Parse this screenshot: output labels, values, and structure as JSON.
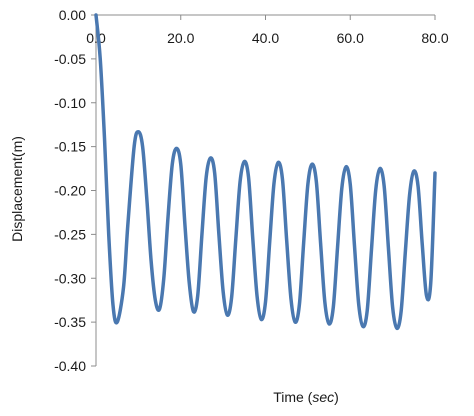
{
  "chart_data": {
    "type": "line",
    "xlabel": "Time",
    "xlabel_unit": "sec",
    "ylabel": "Displacement(m)",
    "xlim": [
      0,
      80
    ],
    "ylim": [
      -0.4,
      0.0
    ],
    "x_ticks": [
      {
        "value": 0,
        "label": "0.0"
      },
      {
        "value": 20,
        "label": "20.0"
      },
      {
        "value": 40,
        "label": "40.0"
      },
      {
        "value": 60,
        "label": "60.0"
      },
      {
        "value": 80,
        "label": "80.0"
      }
    ],
    "y_ticks": [
      {
        "value": 0.0,
        "label": "0.00"
      },
      {
        "value": -0.05,
        "label": "-0.05"
      },
      {
        "value": -0.1,
        "label": "-0.10"
      },
      {
        "value": -0.15,
        "label": "-0.15"
      },
      {
        "value": -0.2,
        "label": "-0.20"
      },
      {
        "value": -0.25,
        "label": "-0.25"
      },
      {
        "value": -0.3,
        "label": "-0.30"
      },
      {
        "value": -0.35,
        "label": "-0.35"
      },
      {
        "value": -0.4,
        "label": "-0.40"
      }
    ],
    "grid": false,
    "legend": "none",
    "line_color": "#4a78b0",
    "series": [
      {
        "x": [
          0,
          1,
          2,
          3,
          4,
          5,
          6.5,
          7.5,
          9,
          10,
          11,
          12,
          13,
          14,
          15,
          16,
          17,
          18,
          19,
          20,
          21,
          22,
          23,
          24,
          25,
          26,
          27,
          28,
          29,
          30,
          31,
          32,
          33,
          34,
          35,
          36,
          37,
          38,
          39,
          40,
          41,
          42,
          43,
          44,
          45,
          46,
          47,
          48,
          49,
          50,
          51,
          52,
          53,
          54,
          55,
          56,
          57,
          58,
          59,
          60,
          61,
          62,
          63,
          64,
          65,
          66,
          67,
          68,
          69,
          70,
          71,
          72,
          73,
          74,
          75,
          76,
          77,
          78,
          79,
          80
        ],
        "y": [
          0.0,
          -0.05,
          -0.14,
          -0.25,
          -0.33,
          -0.35,
          -0.31,
          -0.24,
          -0.15,
          -0.133,
          -0.15,
          -0.21,
          -0.28,
          -0.325,
          -0.335,
          -0.3,
          -0.23,
          -0.17,
          -0.152,
          -0.17,
          -0.24,
          -0.305,
          -0.338,
          -0.32,
          -0.25,
          -0.185,
          -0.163,
          -0.18,
          -0.25,
          -0.315,
          -0.342,
          -0.322,
          -0.255,
          -0.19,
          -0.167,
          -0.185,
          -0.255,
          -0.32,
          -0.347,
          -0.327,
          -0.258,
          -0.192,
          -0.168,
          -0.187,
          -0.257,
          -0.323,
          -0.35,
          -0.33,
          -0.26,
          -0.193,
          -0.17,
          -0.19,
          -0.26,
          -0.327,
          -0.352,
          -0.333,
          -0.265,
          -0.198,
          -0.173,
          -0.193,
          -0.263,
          -0.33,
          -0.355,
          -0.337,
          -0.268,
          -0.2,
          -0.175,
          -0.195,
          -0.265,
          -0.333,
          -0.357,
          -0.338,
          -0.27,
          -0.205,
          -0.178,
          -0.195,
          -0.262,
          -0.32,
          -0.305,
          -0.18
        ]
      }
    ]
  }
}
